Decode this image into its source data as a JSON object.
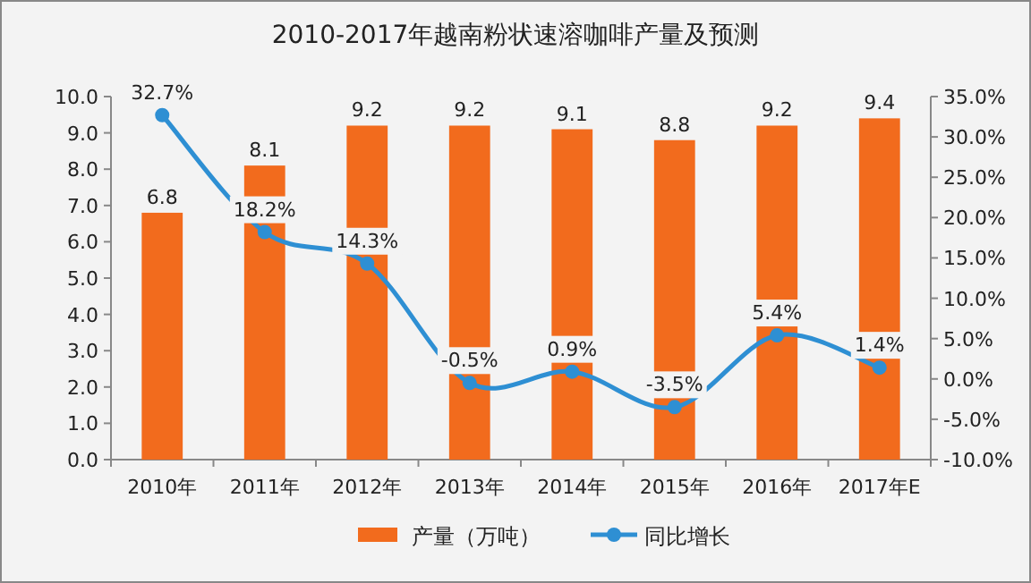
{
  "chart_data": {
    "type": "bar",
    "title": "2010-2017年越南粉状速溶咖啡产量及预测",
    "categories": [
      "2010年",
      "2011年",
      "2012年",
      "2013年",
      "2014年",
      "2015年",
      "2016年",
      "2017年E"
    ],
    "series": [
      {
        "name": "产量（万吨）",
        "color": "#f26b1d",
        "values": [
          6.8,
          8.1,
          9.2,
          9.2,
          9.1,
          8.8,
          9.2,
          9.4
        ]
      },
      {
        "name": "同比增长",
        "type": "line",
        "axis": "y2",
        "color": "#2e8fd3",
        "marker": "circle",
        "values": [
          32.7,
          18.2,
          14.3,
          -0.5,
          0.9,
          -3.5,
          5.4,
          1.4
        ],
        "value_labels": [
          "32.7%",
          "18.2%",
          "14.3%",
          "-0.5%",
          "0.9%",
          "-3.5%",
          "5.4%",
          "1.4%"
        ]
      }
    ],
    "data_labels": true,
    "ylim": [
      0,
      10
    ],
    "yticks": [
      {
        "value": 0,
        "label": "0.0"
      },
      {
        "value": 1,
        "label": "1.0"
      },
      {
        "value": 2,
        "label": "2.0"
      },
      {
        "value": 3,
        "label": "3.0"
      },
      {
        "value": 4,
        "label": "4.0"
      },
      {
        "value": 5,
        "label": "5.0"
      },
      {
        "value": 6,
        "label": "6.0"
      },
      {
        "value": 7,
        "label": "7.0"
      },
      {
        "value": 8,
        "label": "8.0"
      },
      {
        "value": 9,
        "label": "9.0"
      },
      {
        "value": 10,
        "label": "10.0"
      }
    ],
    "y2lim": [
      -10,
      35
    ],
    "y2ticks": [
      {
        "value": -10,
        "label": "-10.0%"
      },
      {
        "value": -5,
        "label": "-5.0%"
      },
      {
        "value": 0,
        "label": "0.0%"
      },
      {
        "value": 5,
        "label": "5.0%"
      },
      {
        "value": 10,
        "label": "10.0%"
      },
      {
        "value": 15,
        "label": "15.0%"
      },
      {
        "value": 20,
        "label": "20.0%"
      },
      {
        "value": 25,
        "label": "25.0%"
      },
      {
        "value": 30,
        "label": "30.0%"
      },
      {
        "value": 35,
        "label": "35.0%"
      }
    ],
    "grid": false,
    "legend": "bottom"
  }
}
